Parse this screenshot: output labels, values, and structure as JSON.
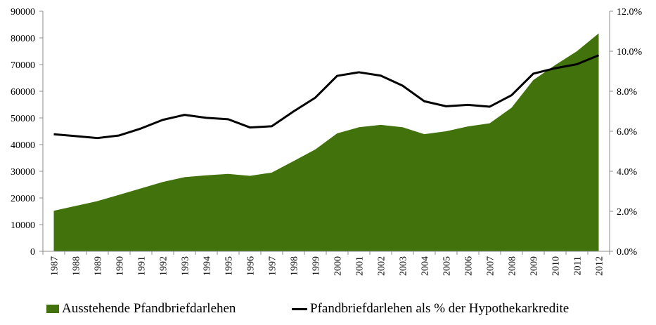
{
  "chart_data": {
    "type": "area",
    "x": [
      "1987",
      "1988",
      "1989",
      "1990",
      "1991",
      "1992",
      "1993",
      "1994",
      "1995",
      "1996",
      "1997",
      "1998",
      "1999",
      "2000",
      "2001",
      "2002",
      "2003",
      "2004",
      "2005",
      "2006",
      "2007",
      "2008",
      "2009",
      "2010",
      "2011",
      "2012"
    ],
    "series": [
      {
        "name": "Ausstehende Pfandbriefdarlehen",
        "kind": "area",
        "axis": "left",
        "color": "#41720b",
        "values": [
          15200,
          17000,
          18800,
          21200,
          23600,
          26000,
          27800,
          28500,
          29000,
          28300,
          29500,
          33800,
          38200,
          44200,
          46500,
          47400,
          46500,
          43900,
          45000,
          46800,
          48000,
          53800,
          64200,
          69800,
          75000,
          81700
        ]
      },
      {
        "name": "Pfandbriefdarlehen als % der Hypothekarkredite",
        "kind": "line",
        "axis": "right",
        "color": "#000000",
        "values": [
          5.85,
          5.76,
          5.66,
          5.79,
          6.14,
          6.57,
          6.82,
          6.67,
          6.6,
          6.19,
          6.25,
          6.99,
          7.68,
          8.77,
          8.95,
          8.78,
          8.28,
          7.5,
          7.25,
          7.32,
          7.23,
          7.8,
          8.88,
          9.15,
          9.35,
          9.8
        ]
      }
    ],
    "y_left": {
      "min": 0,
      "max": 90000,
      "ticks": [
        "0",
        "10000",
        "20000",
        "30000",
        "40000",
        "50000",
        "60000",
        "70000",
        "80000",
        "90000"
      ]
    },
    "y_right": {
      "min": 0,
      "max": 12,
      "ticks": [
        "0.0%",
        "2.0%",
        "4.0%",
        "6.0%",
        "8.0%",
        "10.0%",
        "12.0%"
      ]
    },
    "grid": false,
    "legend_position": "bottom",
    "title": "",
    "xlabel": "",
    "ylabel": ""
  }
}
